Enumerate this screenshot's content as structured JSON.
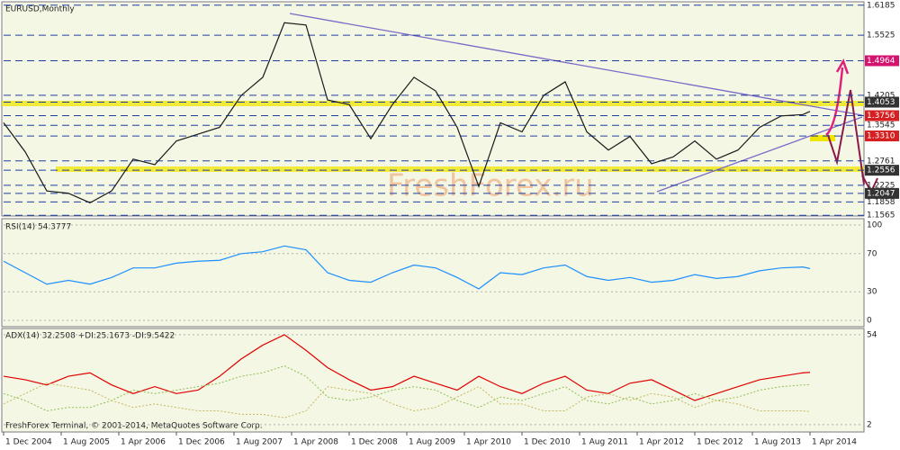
{
  "title": "EURUSD,Monthly",
  "watermark": "FreshForex.ru",
  "footer": "FreshForex Terminal, © 2001-2014, MetaQuotes Software Corp.",
  "chart_data": [
    {
      "type": "line",
      "title": "EURUSD,Monthly",
      "ylim": [
        1.155,
        1.626
      ],
      "x": [
        "2004-12",
        "2005-03",
        "2005-06",
        "2005-09",
        "2005-12",
        "2006-03",
        "2006-06",
        "2006-09",
        "2006-12",
        "2007-03",
        "2007-06",
        "2007-09",
        "2007-12",
        "2008-03",
        "2008-06",
        "2008-09",
        "2008-12",
        "2009-03",
        "2009-06",
        "2009-09",
        "2009-12",
        "2010-03",
        "2010-06",
        "2010-09",
        "2010-12",
        "2011-03",
        "2011-06",
        "2011-09",
        "2011-12",
        "2012-03",
        "2012-06",
        "2012-09",
        "2012-12",
        "2013-03",
        "2013-06",
        "2013-09",
        "2013-12",
        "2014-03",
        "2014-04"
      ],
      "series": [
        {
          "name": "EURUSD",
          "color": "#1a1a1a",
          "values": [
            1.36,
            1.296,
            1.21,
            1.205,
            1.184,
            1.21,
            1.28,
            1.268,
            1.32,
            1.335,
            1.35,
            1.42,
            1.46,
            1.58,
            1.575,
            1.41,
            1.4,
            1.325,
            1.4,
            1.46,
            1.43,
            1.35,
            1.22,
            1.36,
            1.34,
            1.42,
            1.45,
            1.34,
            1.3,
            1.33,
            1.27,
            1.285,
            1.32,
            1.28,
            1.3,
            1.35,
            1.375,
            1.378,
            1.385
          ]
        }
      ],
      "yticks": [
        1.6185,
        1.5525,
        {
          "value": 1.4964,
          "label": "1.4964",
          "color": "#d4136f"
        },
        1.4205,
        {
          "value": 1.4053,
          "label": "1.4053",
          "color": "#333333"
        },
        {
          "value": 1.3756,
          "label": "1.3756",
          "color": "#d42020"
        },
        1.3545,
        {
          "value": 1.331,
          "label": "1.3310",
          "color": "#d42020"
        },
        1.2761,
        {
          "value": 1.2556,
          "label": "1.2556",
          "color": "#333333"
        },
        1.2225,
        {
          "value": 1.2047,
          "label": "1.2047",
          "color": "#333333"
        },
        1.1858,
        1.1565
      ],
      "xticks": [
        {
          "value": "2004-12",
          "label": "1 Dec 2004"
        },
        {
          "value": "2005-08",
          "label": "1 Aug 2005"
        },
        {
          "value": "2006-04",
          "label": "1 Apr 2006"
        },
        {
          "value": "2006-12",
          "label": "1 Dec 2006"
        },
        {
          "value": "2007-08",
          "label": "1 Aug 2007"
        },
        {
          "value": "2008-04",
          "label": "1 Apr 2008"
        },
        {
          "value": "2008-12",
          "label": "1 Dec 2008"
        },
        {
          "value": "2009-08",
          "label": "1 Aug 2009"
        },
        {
          "value": "2010-04",
          "label": "1 Apr 2010"
        },
        {
          "value": "2010-12",
          "label": "1 Dec 2010"
        },
        {
          "value": "2011-08",
          "label": "1 Aug 2011"
        },
        {
          "value": "2012-04",
          "label": "1 Apr 2012"
        },
        {
          "value": "2012-12",
          "label": "1 Dec 2012"
        },
        {
          "value": "2013-08",
          "label": "1 Aug 2013"
        },
        {
          "value": "2014-04",
          "label": "1 Apr 2014"
        }
      ]
    },
    {
      "type": "line",
      "title": "RSI(14) 54.3777",
      "ylim": [
        -6.6,
        106.6
      ],
      "yticks": [
        0,
        30,
        70,
        100
      ],
      "x": [
        "2004-12",
        "2005-03",
        "2005-06",
        "2005-09",
        "2005-12",
        "2006-03",
        "2006-06",
        "2006-09",
        "2006-12",
        "2007-03",
        "2007-06",
        "2007-09",
        "2007-12",
        "2008-03",
        "2008-06",
        "2008-09",
        "2008-12",
        "2009-03",
        "2009-06",
        "2009-09",
        "2009-12",
        "2010-03",
        "2010-06",
        "2010-09",
        "2010-12",
        "2011-03",
        "2011-06",
        "2011-09",
        "2011-12",
        "2012-03",
        "2012-06",
        "2012-09",
        "2012-12",
        "2013-03",
        "2013-06",
        "2013-09",
        "2013-12",
        "2014-03",
        "2014-04"
      ],
      "series": [
        {
          "name": "RSI",
          "color": "#1e90ff",
          "values": [
            62,
            50,
            38,
            42,
            38,
            45,
            55,
            55,
            60,
            62,
            63,
            70,
            72,
            78,
            74,
            50,
            42,
            40,
            50,
            58,
            55,
            45,
            33,
            50,
            48,
            55,
            58,
            46,
            42,
            45,
            40,
            42,
            48,
            44,
            46,
            52,
            55,
            56,
            54.3777
          ]
        }
      ]
    },
    {
      "type": "line",
      "title": "ADX(14) 32.2508 +DI:25.1673 -DI:9.5422",
      "ylim": [
        -2.2,
        57.6
      ],
      "yticks": [
        2,
        54
      ],
      "x": [
        "2004-12",
        "2005-03",
        "2005-06",
        "2005-09",
        "2005-12",
        "2006-03",
        "2006-06",
        "2006-09",
        "2006-12",
        "2007-03",
        "2007-06",
        "2007-09",
        "2007-12",
        "2008-03",
        "2008-06",
        "2008-09",
        "2008-12",
        "2009-03",
        "2009-06",
        "2009-09",
        "2009-12",
        "2010-03",
        "2010-06",
        "2010-09",
        "2010-12",
        "2011-03",
        "2011-06",
        "2011-09",
        "2011-12",
        "2012-03",
        "2012-06",
        "2012-09",
        "2012-12",
        "2013-03",
        "2013-06",
        "2013-09",
        "2013-12",
        "2014-03",
        "2014-04"
      ],
      "series": [
        {
          "name": "ADX",
          "color": "#e00000",
          "values": [
            30,
            28,
            25,
            30,
            32,
            25,
            20,
            24,
            20,
            22,
            30,
            40,
            48,
            54,
            45,
            35,
            28,
            22,
            24,
            30,
            26,
            22,
            30,
            24,
            20,
            26,
            30,
            22,
            20,
            26,
            28,
            22,
            16,
            20,
            24,
            28,
            30,
            32,
            32.2508
          ]
        },
        {
          "name": "+DI",
          "color": "#8fbf5a",
          "dashed": true,
          "values": [
            20,
            16,
            10,
            12,
            12,
            16,
            22,
            20,
            22,
            24,
            26,
            30,
            32,
            36,
            30,
            18,
            16,
            18,
            22,
            24,
            22,
            16,
            12,
            18,
            16,
            20,
            24,
            16,
            14,
            18,
            14,
            16,
            20,
            16,
            18,
            22,
            24,
            25,
            25.1673
          ]
        },
        {
          "name": "-DI",
          "color": "#c8b860",
          "dashed": true,
          "values": [
            14,
            20,
            26,
            24,
            22,
            16,
            12,
            14,
            12,
            10,
            10,
            8,
            8,
            6,
            10,
            24,
            22,
            20,
            14,
            10,
            12,
            18,
            24,
            14,
            14,
            10,
            10,
            18,
            20,
            16,
            20,
            18,
            12,
            16,
            14,
            10,
            10,
            10,
            9.5422
          ]
        }
      ]
    }
  ]
}
